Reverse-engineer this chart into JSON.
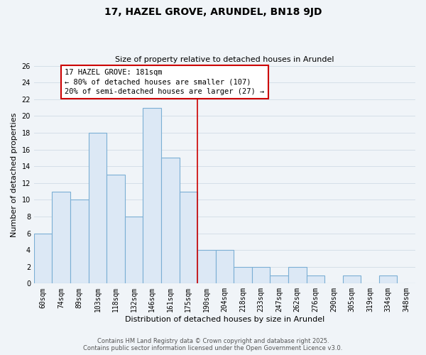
{
  "title": "17, HAZEL GROVE, ARUNDEL, BN18 9JD",
  "subtitle": "Size of property relative to detached houses in Arundel",
  "xlabel": "Distribution of detached houses by size in Arundel",
  "ylabel": "Number of detached properties",
  "bin_labels": [
    "60sqm",
    "74sqm",
    "89sqm",
    "103sqm",
    "118sqm",
    "132sqm",
    "146sqm",
    "161sqm",
    "175sqm",
    "190sqm",
    "204sqm",
    "218sqm",
    "233sqm",
    "247sqm",
    "262sqm",
    "276sqm",
    "290sqm",
    "305sqm",
    "319sqm",
    "334sqm",
    "348sqm"
  ],
  "bar_values": [
    6,
    11,
    10,
    18,
    13,
    8,
    21,
    15,
    11,
    4,
    4,
    2,
    2,
    1,
    2,
    1,
    0,
    1,
    0,
    1,
    0
  ],
  "bar_color": "#dce8f5",
  "bar_edge_color": "#7bafd4",
  "grid_color": "#d5dfe8",
  "vline_index": 8,
  "vline_color": "#cc0000",
  "ann_title": "17 HAZEL GROVE: 181sqm",
  "ann_line1": "← 80% of detached houses are smaller (107)",
  "ann_line2": "20% of semi-detached houses are larger (27) →",
  "ann_box_facecolor": "#ffffff",
  "ann_box_edgecolor": "#cc0000",
  "ylim": [
    0,
    26
  ],
  "yticks": [
    0,
    2,
    4,
    6,
    8,
    10,
    12,
    14,
    16,
    18,
    20,
    22,
    24,
    26
  ],
  "footer_line1": "Contains HM Land Registry data © Crown copyright and database right 2025.",
  "footer_line2": "Contains public sector information licensed under the Open Government Licence v3.0.",
  "background_color": "#f0f4f8",
  "title_fontsize": 10,
  "subtitle_fontsize": 8,
  "ylabel_fontsize": 8,
  "xlabel_fontsize": 8,
  "tick_fontsize": 7,
  "ann_fontsize": 7.5,
  "footer_fontsize": 6
}
